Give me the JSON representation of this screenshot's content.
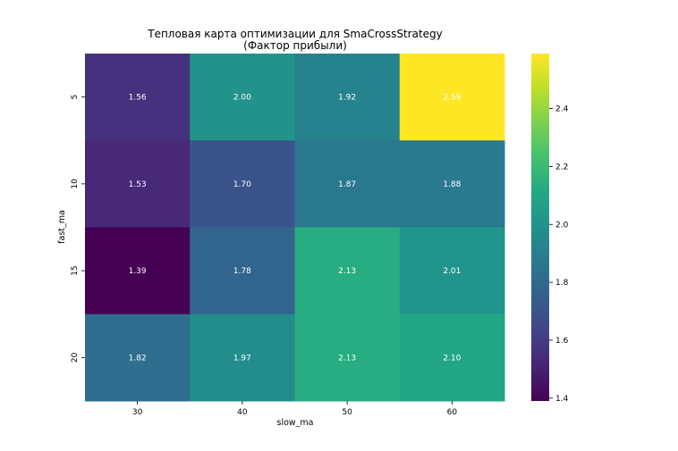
{
  "chart_data": {
    "type": "heatmap",
    "title_line1": "Тепловая карта оптимизации для SmaCrossStrategy",
    "title_line2": "(Фактор прибыли)",
    "xlabel": "slow_ma",
    "ylabel": "fast_ma",
    "x_categories": [
      "30",
      "40",
      "50",
      "60"
    ],
    "y_categories": [
      "5",
      "10",
      "15",
      "20"
    ],
    "values": [
      [
        1.56,
        2.0,
        1.92,
        2.59
      ],
      [
        1.53,
        1.7,
        1.87,
        1.88
      ],
      [
        1.39,
        1.78,
        2.13,
        2.01
      ],
      [
        1.82,
        1.97,
        2.13,
        2.1
      ]
    ],
    "value_labels": [
      [
        "1.56",
        "2.00",
        "1.92",
        "2.59"
      ],
      [
        "1.53",
        "1.70",
        "1.87",
        "1.88"
      ],
      [
        "1.39",
        "1.78",
        "2.13",
        "2.01"
      ],
      [
        "1.82",
        "1.97",
        "2.13",
        "2.10"
      ]
    ],
    "colormap": "viridis",
    "vmin": 1.39,
    "vmax": 2.59,
    "colorbar_ticks": [
      1.4,
      1.6,
      1.8,
      2.0,
      2.2,
      2.4
    ],
    "colorbar_tick_labels": [
      "1.4",
      "1.6",
      "1.8",
      "2.0",
      "2.2",
      "2.4"
    ],
    "annotation_color": "#ffffff"
  }
}
